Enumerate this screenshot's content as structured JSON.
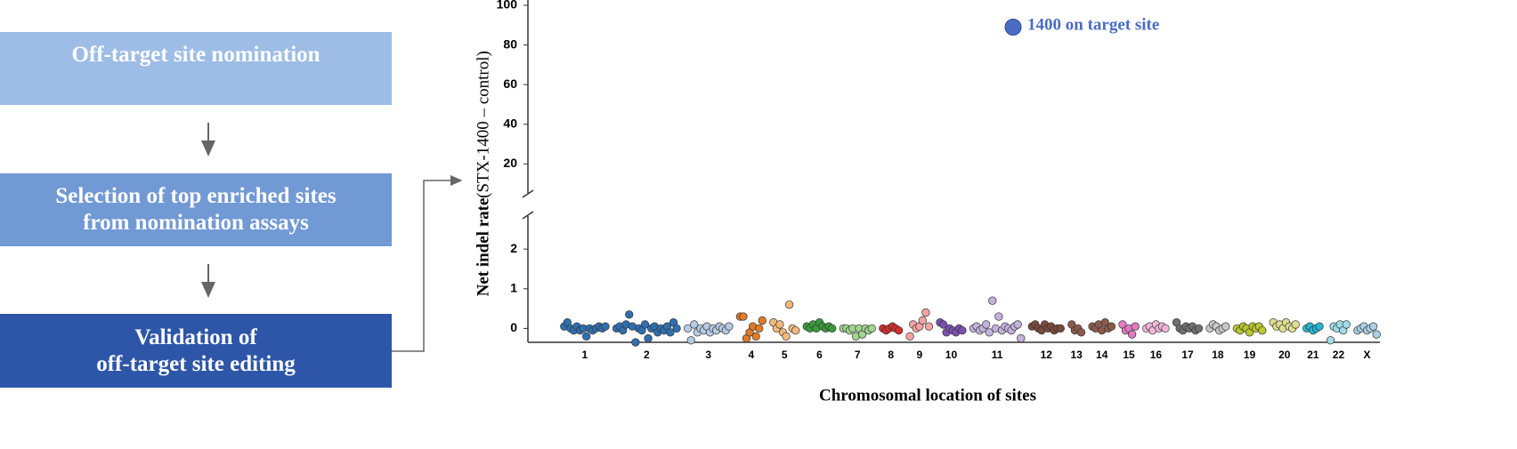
{
  "flowchart": {
    "steps": [
      "Off-target site nomination",
      "Selection of top enriched sites from nomination assays",
      "Validation of off-target site editing"
    ]
  },
  "chart_data": {
    "type": "strip",
    "ylabel": "Net indel rate",
    "ylabel_sub": "(STX-1400 – control)",
    "xlabel": "Chromosomal location of sites",
    "ylim": [
      -0.35,
      2.9
    ],
    "yticks": [
      0,
      1,
      2
    ],
    "ylim_upper": [
      4,
      100
    ],
    "yticks_upper": [
      20,
      40,
      60,
      80,
      100
    ],
    "on_target": {
      "label": "1400 on target site",
      "value": 89,
      "color": "#4a6cc2"
    },
    "categories": [
      "1",
      "2",
      "3",
      "4",
      "5",
      "6",
      "7",
      "8",
      "9",
      "10",
      "11",
      "12",
      "13",
      "14",
      "15",
      "16",
      "17",
      "18",
      "19",
      "20",
      "21",
      "22",
      "X"
    ],
    "colors": [
      "#2f6fb0",
      "#2f6fb0",
      "#b5c9e3",
      "#e07b28",
      "#f5b87c",
      "#3a9a3a",
      "#9fd58f",
      "#d32f2f",
      "#f4a3a3",
      "#7b4fb0",
      "#c3b2dc",
      "#7a4a3a",
      "#8b5a4a",
      "#8b5a4a",
      "#e27cc0",
      "#f2b6da",
      "#707070",
      "#c8c8c8",
      "#b8c82e",
      "#dede90",
      "#27b6cf",
      "#9edbe6",
      "#a8d0e6"
    ],
    "values": [
      [
        0.05,
        0.15,
        0.0,
        -0.05,
        0.05,
        -0.05,
        0.0,
        -0.2,
        0.0,
        -0.05,
        0.0,
        0.05,
        0.0,
        0.05
      ],
      [
        0.0,
        0.05,
        -0.05,
        0.1,
        0.35,
        0.05,
        -0.35,
        0.0,
        -0.05,
        0.1,
        -0.25,
        0.0,
        0.05,
        -0.1,
        0.0,
        -0.05,
        0.05,
        -0.1,
        0.15,
        0.0
      ],
      [
        0.0,
        -0.3,
        0.1,
        -0.1,
        0.0,
        -0.05,
        0.05,
        -0.1,
        0.0,
        -0.05,
        0.05,
        0.0,
        -0.05,
        0.05
      ],
      [
        0.3,
        0.3,
        -0.25,
        -0.1,
        0.05,
        -0.2,
        0.0,
        0.2
      ],
      [
        0.15,
        0.0,
        0.1,
        -0.1,
        -0.2,
        0.6,
        0.0,
        -0.05
      ],
      [
        0.05,
        0.0,
        0.1,
        0.0,
        0.15,
        0.05,
        0.0,
        0.05,
        0.0
      ],
      [
        0.0,
        0.0,
        -0.05,
        0.0,
        -0.2,
        0.0,
        -0.15,
        0.0,
        -0.05,
        0.0
      ],
      [
        0.0,
        -0.05,
        0.0,
        0.05,
        0.0,
        -0.05
      ],
      [
        -0.2,
        0.1,
        0.0,
        0.05,
        0.2,
        0.4,
        0.05
      ],
      [
        0.15,
        0.1,
        -0.1,
        0.0,
        -0.05,
        -0.1,
        0.0,
        -0.05
      ],
      [
        0.0,
        0.05,
        -0.05,
        0.0,
        0.1,
        -0.1,
        0.7,
        0.0,
        0.3,
        -0.05,
        0.05,
        0.0,
        -0.05,
        0.05,
        0.1,
        -0.25
      ],
      [
        0.05,
        0.1,
        0.0,
        -0.05,
        0.1,
        0.0,
        0.05,
        -0.05,
        0.0,
        0.0
      ],
      [
        0.1,
        -0.05,
        0.0,
        -0.1
      ],
      [
        0.05,
        0.0,
        0.1,
        -0.05,
        0.15,
        0.0,
        0.05
      ],
      [
        0.1,
        -0.05,
        0.0,
        -0.15,
        0.05
      ],
      [
        0.0,
        0.05,
        -0.05,
        0.1,
        0.0,
        0.05,
        0.0
      ],
      [
        0.15,
        0.0,
        -0.05,
        0.05,
        0.0,
        0.05,
        -0.05,
        0.0
      ],
      [
        0.0,
        0.1,
        0.05,
        -0.05,
        0.0,
        0.05
      ],
      [
        0.0,
        -0.05,
        0.05,
        0.0,
        -0.1,
        0.05,
        0.0,
        0.05,
        -0.05
      ],
      [
        0.15,
        0.05,
        0.1,
        0.0,
        0.15,
        0.05,
        0.0,
        0.1
      ],
      [
        0.0,
        0.05,
        -0.05,
        0.0,
        0.05
      ],
      [
        -0.3,
        0.05,
        0.0,
        0.1,
        -0.05,
        0.1
      ],
      [
        -0.05,
        0.0,
        0.05,
        -0.05,
        0.0,
        0.05,
        -0.15
      ]
    ]
  }
}
